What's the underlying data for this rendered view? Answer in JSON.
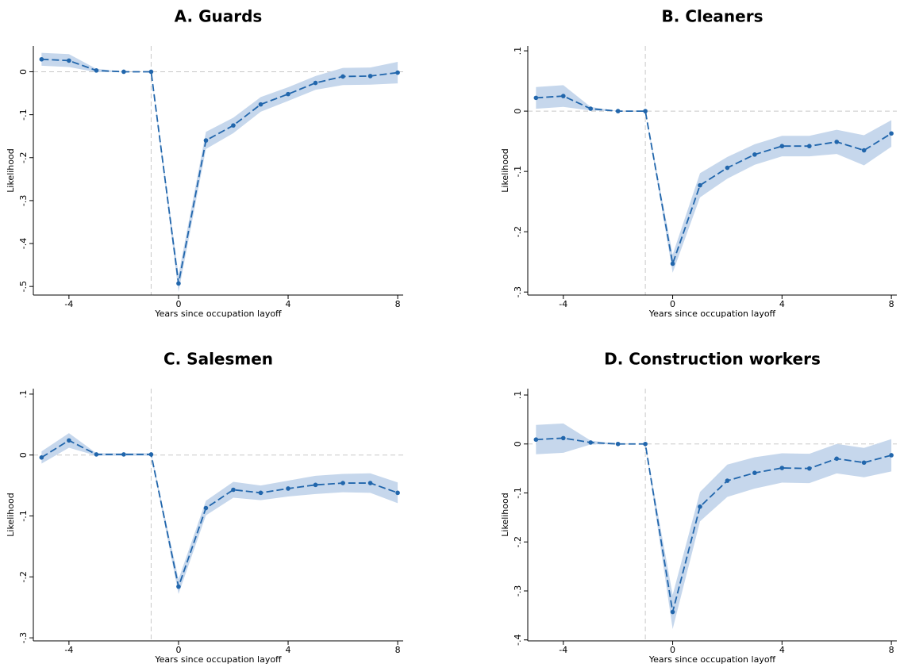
{
  "chart_data": [
    {
      "type": "line",
      "title": "A. Guards",
      "xlabel": "Years since occupation layoff",
      "ylabel": "Likelihood",
      "x": [
        -5,
        -4,
        -3,
        -2,
        -1,
        0,
        1,
        2,
        3,
        4,
        5,
        6,
        7,
        8
      ],
      "series": [
        {
          "color": "#2166ac",
          "band_color": "#c6d7ec",
          "values": [
            0.029,
            0.026,
            0.003,
            0,
            0,
            -0.493,
            -0.16,
            -0.125,
            -0.076,
            -0.052,
            -0.026,
            -0.011,
            -0.01,
            -0.002
          ],
          "lower": [
            0.014,
            0.011,
            -0.001,
            0,
            0,
            -0.513,
            -0.18,
            -0.143,
            -0.093,
            -0.068,
            -0.042,
            -0.031,
            -0.03,
            -0.027
          ],
          "upper": [
            0.044,
            0.041,
            0.007,
            0,
            0,
            -0.473,
            -0.14,
            -0.107,
            -0.059,
            -0.036,
            -0.01,
            0.009,
            0.01,
            0.023
          ]
        }
      ],
      "xlim": [
        -5.3,
        8.2
      ],
      "xticks": [
        -4,
        0,
        4,
        8
      ],
      "ylim": [
        -0.52,
        0.06
      ],
      "yticks": [
        {
          "value": -0.5,
          "label": "-.5"
        },
        {
          "value": -0.4,
          "label": "-.4"
        },
        {
          "value": -0.3,
          "label": "-.3"
        },
        {
          "value": -0.2,
          "label": "-.2"
        },
        {
          "value": -0.1,
          "label": "-.1"
        },
        0
      ],
      "reference_lines": {
        "x": -1,
        "y": 0
      }
    },
    {
      "type": "line",
      "title": "B. Cleaners",
      "xlabel": "Years since occupation layoff",
      "ylabel": "Likelihood",
      "x": [
        -5,
        -4,
        -3,
        -2,
        -1,
        0,
        1,
        2,
        3,
        4,
        5,
        6,
        7,
        8
      ],
      "series": [
        {
          "color": "#2166ac",
          "band_color": "#c6d7ec",
          "values": [
            0.022,
            0.025,
            0.004,
            0,
            0,
            -0.253,
            -0.123,
            -0.094,
            -0.072,
            -0.058,
            -0.058,
            -0.051,
            -0.065,
            -0.037
          ],
          "lower": [
            0.004,
            0.007,
            0.001,
            0,
            0,
            -0.268,
            -0.143,
            -0.112,
            -0.089,
            -0.075,
            -0.075,
            -0.071,
            -0.09,
            -0.059
          ],
          "upper": [
            0.04,
            0.043,
            0.007,
            0,
            0,
            -0.238,
            -0.103,
            -0.076,
            -0.055,
            -0.041,
            -0.041,
            -0.031,
            -0.04,
            -0.015
          ]
        }
      ],
      "xlim": [
        -5.3,
        8.2
      ],
      "xticks": [
        -4,
        0,
        4,
        8
      ],
      "ylim": [
        -0.305,
        0.108
      ],
      "yticks": [
        {
          "value": -0.3,
          "label": "-.3"
        },
        {
          "value": -0.2,
          "label": "-.2"
        },
        {
          "value": -0.1,
          "label": "-.1"
        },
        0,
        {
          "value": 0.1,
          "label": ".1"
        }
      ],
      "reference_lines": {
        "x": -1,
        "y": 0
      }
    },
    {
      "type": "line",
      "title": "C. Salesmen",
      "xlabel": "Years since occupation layoff",
      "ylabel": "Likelihood",
      "x": [
        -5,
        -4,
        -3,
        -2,
        -1,
        0,
        1,
        2,
        3,
        4,
        5,
        6,
        7,
        8
      ],
      "series": [
        {
          "color": "#2166ac",
          "band_color": "#c6d7ec",
          "values": [
            -0.004,
            0.024,
            0.001,
            0.001,
            0.001,
            -0.216,
            -0.087,
            -0.057,
            -0.062,
            -0.055,
            -0.049,
            -0.046,
            -0.046,
            -0.062
          ],
          "lower": [
            -0.014,
            0.012,
            -0.001,
            -0.001,
            -0.001,
            -0.228,
            -0.099,
            -0.07,
            -0.074,
            -0.068,
            -0.064,
            -0.061,
            -0.062,
            -0.079
          ],
          "upper": [
            0.006,
            0.036,
            0.003,
            0.003,
            0.003,
            -0.204,
            -0.075,
            -0.044,
            -0.05,
            -0.042,
            -0.034,
            -0.031,
            -0.03,
            -0.045
          ]
        }
      ],
      "xlim": [
        -5.3,
        8.2
      ],
      "xticks": [
        -4,
        0,
        4,
        8
      ],
      "ylim": [
        -0.305,
        0.109
      ],
      "yticks": [
        {
          "value": -0.3,
          "label": "-.3"
        },
        {
          "value": -0.2,
          "label": "-.2"
        },
        {
          "value": -0.1,
          "label": "-.1"
        },
        0,
        {
          "value": 0.1,
          "label": ".1"
        }
      ],
      "reference_lines": {
        "x": -1,
        "y": 0
      }
    },
    {
      "type": "line",
      "title": "D. Construction workers",
      "xlabel": "Years since occupation layoff",
      "ylabel": "Likelihood",
      "x": [
        -5,
        -4,
        -3,
        -2,
        -1,
        0,
        1,
        2,
        3,
        4,
        5,
        6,
        7,
        8
      ],
      "series": [
        {
          "color": "#2166ac",
          "band_color": "#c6d7ec",
          "values": [
            0.009,
            0.012,
            0.003,
            0,
            0,
            -0.343,
            -0.128,
            -0.075,
            -0.059,
            -0.049,
            -0.05,
            -0.03,
            -0.038,
            -0.023
          ],
          "lower": [
            -0.021,
            -0.018,
            -0.001,
            0,
            0,
            -0.378,
            -0.158,
            -0.108,
            -0.091,
            -0.079,
            -0.08,
            -0.06,
            -0.068,
            -0.056
          ],
          "upper": [
            0.039,
            0.042,
            0.007,
            0,
            0,
            -0.308,
            -0.098,
            -0.042,
            -0.027,
            -0.019,
            -0.02,
            0,
            -0.008,
            0.01
          ]
        }
      ],
      "xlim": [
        -5.3,
        8.2
      ],
      "xticks": [
        -4,
        0,
        4,
        8
      ],
      "ylim": [
        -0.402,
        0.113
      ],
      "yticks": [
        {
          "value": -0.4,
          "label": "-.4"
        },
        {
          "value": -0.3,
          "label": "-.3"
        },
        {
          "value": -0.2,
          "label": "-.2"
        },
        {
          "value": -0.1,
          "label": "-.1"
        },
        0,
        {
          "value": 0.1,
          "label": ".1"
        }
      ],
      "reference_lines": {
        "x": -1,
        "y": 0
      }
    }
  ]
}
